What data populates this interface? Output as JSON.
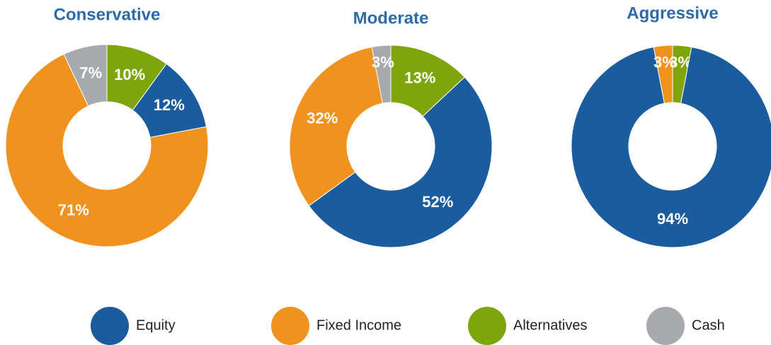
{
  "chart_data": [
    {
      "type": "pie",
      "title": "Conservative",
      "categories": [
        "Alternatives",
        "Equity",
        "Fixed Income",
        "Cash"
      ],
      "values": [
        10,
        12,
        71,
        7
      ],
      "value_labels": [
        "10%",
        "12%",
        "71%",
        "7%"
      ],
      "colors": [
        "#7fa50d",
        "#1a5c9e",
        "#f0921e",
        "#a7a9ac"
      ]
    },
    {
      "type": "pie",
      "title": "Moderate",
      "categories": [
        "Alternatives",
        "Equity",
        "Fixed Income",
        "Cash"
      ],
      "values": [
        13,
        52,
        32,
        3
      ],
      "value_labels": [
        "13%",
        "52%",
        "32%",
        "3%"
      ],
      "colors": [
        "#7fa50d",
        "#1a5c9e",
        "#f0921e",
        "#a7a9ac"
      ]
    },
    {
      "type": "pie",
      "title": "Aggressive",
      "categories": [
        "Alternatives",
        "Equity",
        "Fixed Income"
      ],
      "values": [
        3,
        94,
        3
      ],
      "value_labels": [
        "3%",
        "94%",
        "3%"
      ],
      "colors": [
        "#7fa50d",
        "#1a5c9e",
        "#f0921e"
      ]
    }
  ],
  "legend": [
    {
      "name": "Equity",
      "color": "#1a5c9e"
    },
    {
      "name": "Fixed Income",
      "color": "#f0921e"
    },
    {
      "name": "Alternatives",
      "color": "#7fa50d"
    },
    {
      "name": "Cash",
      "color": "#a7a9ac"
    }
  ]
}
